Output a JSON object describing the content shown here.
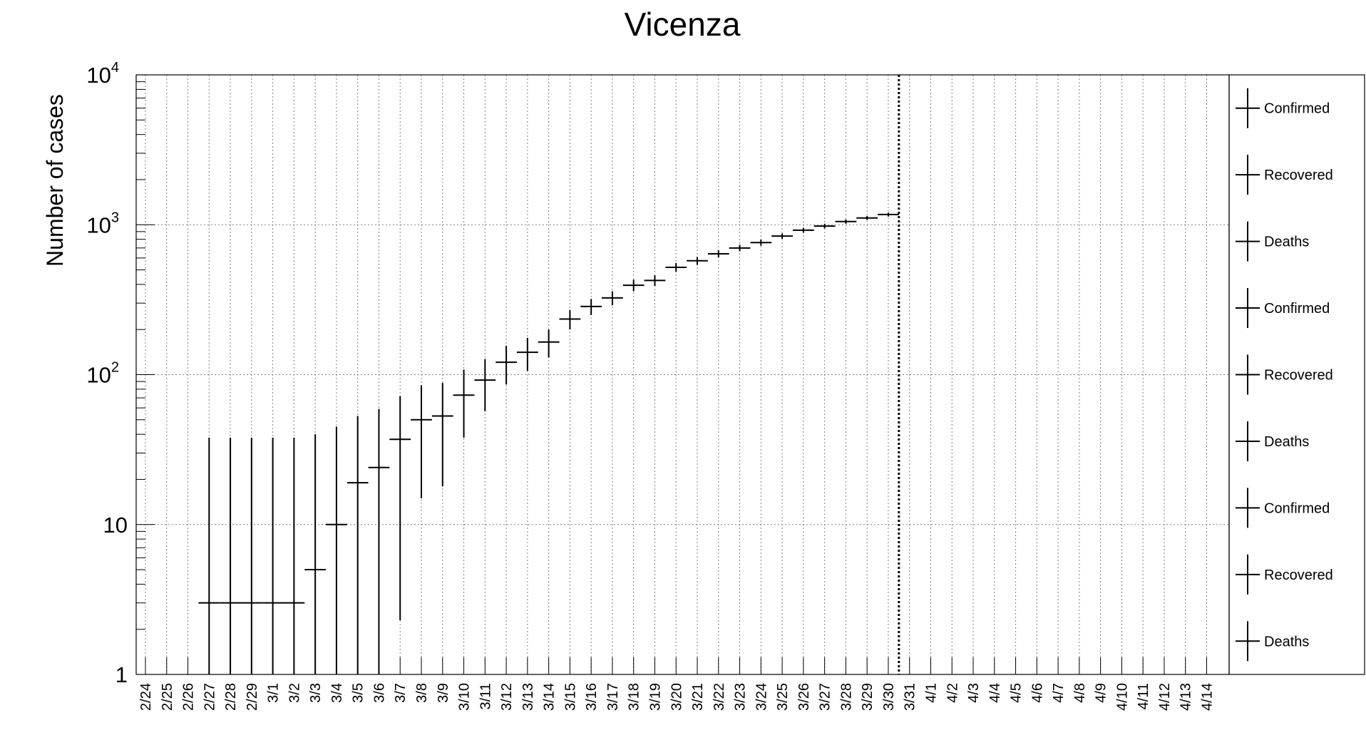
{
  "chart_data": {
    "type": "scatter",
    "title": "Vicenza",
    "xlabel": "",
    "ylabel": "Number of cases",
    "yscale": "log",
    "ylim": [
      1,
      10000
    ],
    "y_ticks": [
      {
        "value": 1,
        "base": "1",
        "exp": ""
      },
      {
        "value": 10,
        "base": "10",
        "exp": ""
      },
      {
        "value": 100,
        "base": "10",
        "exp": "2"
      },
      {
        "value": 1000,
        "base": "10",
        "exp": "3"
      },
      {
        "value": 10000,
        "base": "10",
        "exp": "4"
      }
    ],
    "grid": true,
    "legend_position": "right",
    "categories": [
      "2/24",
      "2/25",
      "2/26",
      "2/27",
      "2/28",
      "2/29",
      "3/1",
      "3/2",
      "3/3",
      "3/4",
      "3/5",
      "3/6",
      "3/7",
      "3/8",
      "3/9",
      "3/10",
      "3/11",
      "3/12",
      "3/13",
      "3/14",
      "3/15",
      "3/16",
      "3/17",
      "3/18",
      "3/19",
      "3/20",
      "3/21",
      "3/22",
      "3/23",
      "3/24",
      "3/25",
      "3/26",
      "3/27",
      "3/28",
      "3/29",
      "3/30",
      "3/31",
      "4/1",
      "4/2",
      "4/3",
      "4/4",
      "4/5",
      "4/6",
      "4/7",
      "4/8",
      "4/9",
      "4/10",
      "4/11",
      "4/12",
      "4/13",
      "4/14"
    ],
    "marker_date": "3/30",
    "series": [
      {
        "name": "Confirmed",
        "points": [
          {
            "x": "2/27",
            "y": 3,
            "low": 1,
            "high": 38,
            "xwidth": 1
          },
          {
            "x": "2/28",
            "y": 3,
            "low": 1,
            "high": 38,
            "xwidth": 1
          },
          {
            "x": "2/29",
            "y": 3,
            "low": 1,
            "high": 38,
            "xwidth": 1
          },
          {
            "x": "3/1",
            "y": 3,
            "low": 1,
            "high": 38,
            "xwidth": 1
          },
          {
            "x": "3/2",
            "y": 3,
            "low": 1,
            "high": 38,
            "xwidth": 1
          },
          {
            "x": "3/3",
            "y": 5,
            "low": 1,
            "high": 40,
            "xwidth": 1
          },
          {
            "x": "3/4",
            "y": 10,
            "low": 1,
            "high": 45,
            "xwidth": 1
          },
          {
            "x": "3/5",
            "y": 19,
            "low": 1,
            "high": 53,
            "xwidth": 1
          },
          {
            "x": "3/6",
            "y": 24,
            "low": 1,
            "high": 59,
            "xwidth": 1
          },
          {
            "x": "3/7",
            "y": 37,
            "low": 2.3,
            "high": 72,
            "xwidth": 1
          },
          {
            "x": "3/8",
            "y": 50,
            "low": 15,
            "high": 85,
            "xwidth": 1
          },
          {
            "x": "3/9",
            "y": 53,
            "low": 18,
            "high": 88,
            "xwidth": 1
          },
          {
            "x": "3/10",
            "y": 73,
            "low": 38,
            "high": 108,
            "xwidth": 1
          },
          {
            "x": "3/11",
            "y": 92,
            "low": 57,
            "high": 127,
            "xwidth": 1
          },
          {
            "x": "3/12",
            "y": 121,
            "low": 86,
            "high": 156,
            "xwidth": 1
          },
          {
            "x": "3/13",
            "y": 141,
            "low": 106,
            "high": 176,
            "xwidth": 1
          },
          {
            "x": "3/14",
            "y": 165,
            "low": 130,
            "high": 200,
            "xwidth": 1
          },
          {
            "x": "3/15",
            "y": 235,
            "low": 200,
            "high": 270,
            "xwidth": 1
          },
          {
            "x": "3/16",
            "y": 285,
            "low": 250,
            "high": 320,
            "xwidth": 1
          },
          {
            "x": "3/17",
            "y": 325,
            "low": 290,
            "high": 360,
            "xwidth": 1
          },
          {
            "x": "3/18",
            "y": 395,
            "low": 360,
            "high": 430,
            "xwidth": 1
          },
          {
            "x": "3/19",
            "y": 425,
            "low": 390,
            "high": 460,
            "xwidth": 1
          },
          {
            "x": "3/20",
            "y": 520,
            "low": 485,
            "high": 555,
            "xwidth": 1
          },
          {
            "x": "3/21",
            "y": 575,
            "low": 540,
            "high": 610,
            "xwidth": 1
          },
          {
            "x": "3/22",
            "y": 640,
            "low": 605,
            "high": 675,
            "xwidth": 1
          },
          {
            "x": "3/23",
            "y": 700,
            "low": 665,
            "high": 735,
            "xwidth": 1
          },
          {
            "x": "3/24",
            "y": 760,
            "low": 725,
            "high": 795,
            "xwidth": 1
          },
          {
            "x": "3/25",
            "y": 840,
            "low": 805,
            "high": 875,
            "xwidth": 1
          },
          {
            "x": "3/26",
            "y": 920,
            "low": 885,
            "high": 955,
            "xwidth": 1
          },
          {
            "x": "3/27",
            "y": 980,
            "low": 945,
            "high": 1015,
            "xwidth": 1
          },
          {
            "x": "3/28",
            "y": 1050,
            "low": 1015,
            "high": 1085,
            "xwidth": 1
          },
          {
            "x": "3/29",
            "y": 1110,
            "low": 1075,
            "high": 1145,
            "xwidth": 1
          },
          {
            "x": "3/30",
            "y": 1170,
            "low": 1135,
            "high": 1205,
            "xwidth": 1
          }
        ]
      },
      {
        "name": "Recovered",
        "points": []
      },
      {
        "name": "Deaths",
        "points": []
      }
    ],
    "legend": [
      "Confirmed",
      "Recovered",
      "Deaths",
      "Confirmed",
      "Recovered",
      "Deaths",
      "Confirmed",
      "Recovered",
      "Deaths"
    ]
  }
}
